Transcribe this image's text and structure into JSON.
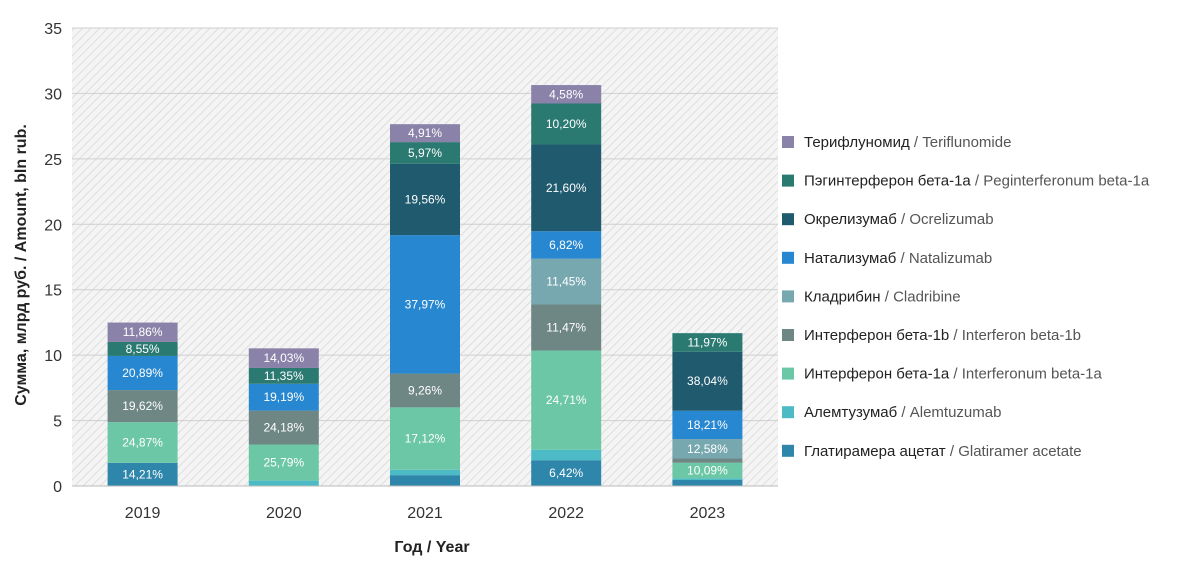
{
  "chart_data": {
    "type": "bar",
    "stacked": true,
    "xlabel": "Год / Year",
    "ylabel": "Сумма, млрд руб. / Amount, bln rub.",
    "ylim": [
      0,
      35
    ],
    "yticks": [
      0,
      5,
      10,
      15,
      20,
      25,
      30,
      35
    ],
    "categories": [
      "2019",
      "2020",
      "2021",
      "2022",
      "2023"
    ],
    "legend_position": "right",
    "grid": true,
    "series": [
      {
        "name": "Глатирамера ацетат / Glatiramer acetate",
        "name_ru": "Глатирамера ацетат",
        "name_en": "Glatiramer acetate",
        "color": "#2E86AB",
        "values": [
          1.77,
          0.0,
          0.83,
          1.97,
          0.46
        ],
        "labels": [
          "14,21%",
          "",
          "",
          "6,42%",
          ""
        ]
      },
      {
        "name": "Алемтузумаб / Alemtuzumab",
        "name_ru": "Алемтузумаб",
        "name_en": "Alemtuzumab",
        "color": "#4DBBC5",
        "values": [
          0.0,
          0.41,
          0.41,
          0.8,
          0.12
        ],
        "labels": [
          "",
          "",
          "",
          "",
          ""
        ]
      },
      {
        "name": "Интерферон бета-1a / Interferonum beta-1a",
        "name_ru": "Интерферон бета-1a",
        "name_en": "Interferonum beta-1a",
        "color": "#6CC7A6",
        "values": [
          3.11,
          2.76,
          4.77,
          7.58,
          1.2
        ],
        "labels": [
          "24,87%",
          "25,79%",
          "17,12%",
          "24,71%",
          "10,09%"
        ]
      },
      {
        "name": "Интерферон бета-1b / Interferon beta-1b",
        "name_ru": "Интерферон бета-1b",
        "name_en": "Interferon beta-1b",
        "color": "#6F8784",
        "values": [
          2.45,
          2.59,
          2.58,
          3.52,
          0.32
        ],
        "labels": [
          "19,62%",
          "24,18%",
          "9,26%",
          "11,47%",
          ""
        ]
      },
      {
        "name": "Кладрибин / Cladribine",
        "name_ru": "Кладрибин",
        "name_en": "Cladribine",
        "color": "#77A8B0",
        "values": [
          0.0,
          0.0,
          0.0,
          3.51,
          1.49
        ],
        "labels": [
          "",
          "",
          "",
          "11,45%",
          "12,58%"
        ]
      },
      {
        "name": "Натализумаб / Natalizumab",
        "name_ru": "Натализумаб",
        "name_en": "Natalizumab",
        "color": "#2787D0",
        "values": [
          2.61,
          2.05,
          10.58,
          2.09,
          2.16
        ],
        "labels": [
          "20,89%",
          "19,19%",
          "37,97%",
          "6,82%",
          "18,21%"
        ]
      },
      {
        "name": "Окрелизумаб / Ocrelizumab",
        "name_ru": "Окрелизумаб",
        "name_en": "Ocrelizumab",
        "color": "#1F5A6E",
        "values": [
          0.0,
          0.0,
          5.45,
          6.63,
          4.51
        ],
        "labels": [
          "",
          "",
          "19,56%",
          "21,60%",
          "38,04%"
        ]
      },
      {
        "name": "Пэгинтерферон бета-1a / Peginterferonum beta-1a",
        "name_ru": "Пэгинтерферон бета-1a",
        "name_en": "Peginterferonum beta-1a",
        "color": "#2A7A72",
        "values": [
          1.07,
          1.21,
          1.66,
          3.13,
          1.42
        ],
        "labels": [
          "8,55%",
          "11,35%",
          "5,97%",
          "10,20%",
          "11,97%"
        ]
      },
      {
        "name": "Терифлуномид / Teriflunomide",
        "name_ru": "Терифлуномид",
        "name_en": "Teriflunomide",
        "color": "#8A82A8",
        "values": [
          1.48,
          1.5,
          1.37,
          1.41,
          0.0
        ],
        "labels": [
          "11,86%",
          "14,03%",
          "4,91%",
          "4,58%",
          ""
        ]
      }
    ]
  }
}
